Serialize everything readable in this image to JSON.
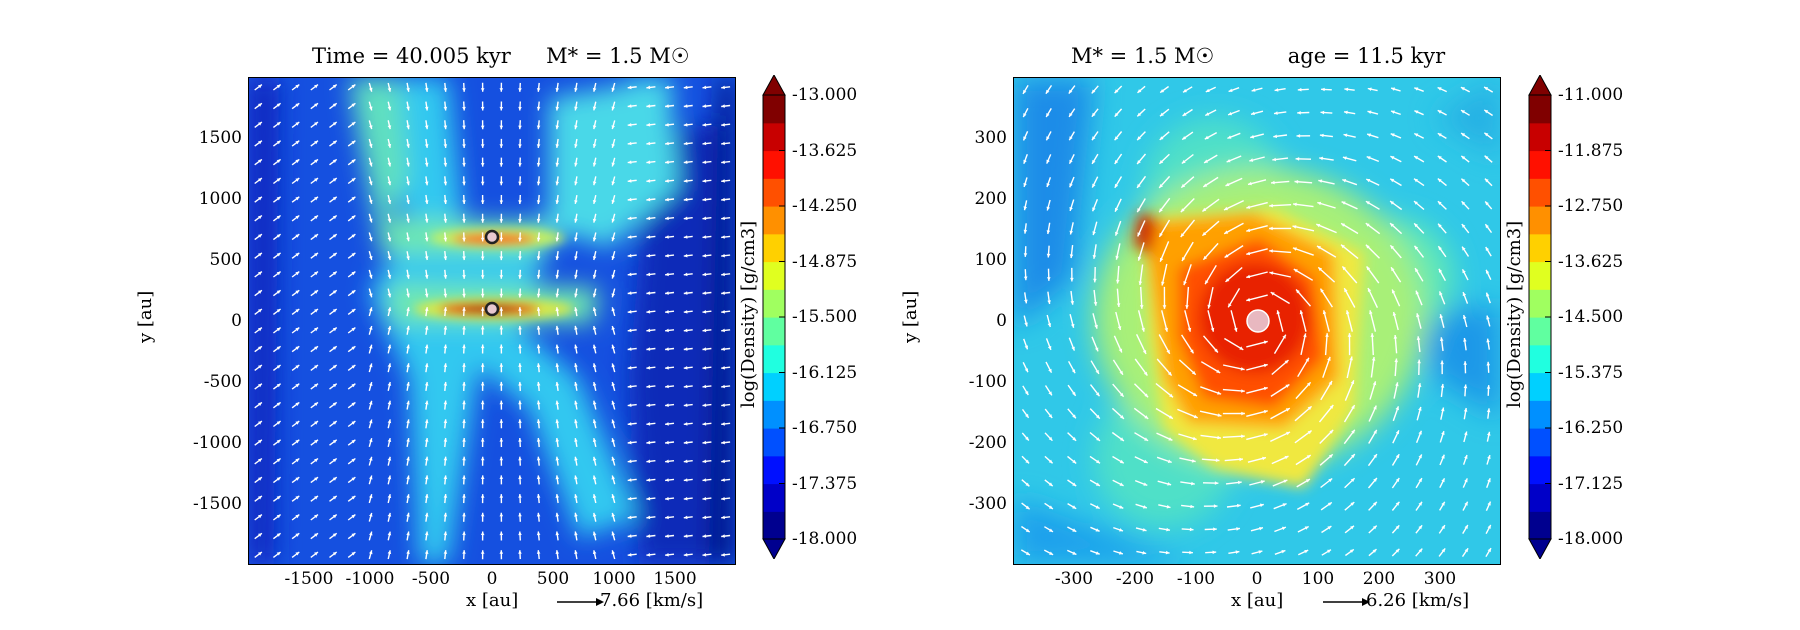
{
  "chart_data": [
    {
      "type": "heatmap",
      "title_left": "Time = 40.005 kyr",
      "title_right": "M* = 1.5 M☉",
      "xlabel": "x [au]",
      "ylabel": "y [au]",
      "xlim": [
        -2000,
        2000
      ],
      "ylim": [
        -2000,
        2000
      ],
      "xticks": [
        "-1500",
        "-1000",
        "-500",
        "0",
        "500",
        "1000",
        "1500"
      ],
      "yticks": [
        "1500",
        "1000",
        "500",
        "0",
        "-500",
        "-1000",
        "-1500"
      ],
      "vector_label": "7.66 [km/s]",
      "colorbar": {
        "label": "log(Density) [g/cm3]",
        "range": [
          -18.0,
          -13.0
        ],
        "ticks": [
          "-13.000",
          "-13.625",
          "-14.250",
          "-14.875",
          "-15.500",
          "-16.125",
          "-16.750",
          "-17.375",
          "-18.000"
        ]
      },
      "sinks": [
        [
          0,
          670
        ],
        [
          0,
          0
        ]
      ]
    },
    {
      "type": "heatmap",
      "title_left": "M* = 1.5 M☉",
      "title_right": "age = 11.5 kyr",
      "xlabel": "x [au]",
      "ylabel": "y [au]",
      "xlim": [
        -400,
        400
      ],
      "ylim": [
        -400,
        400
      ],
      "xticks": [
        "-300",
        "-200",
        "-100",
        "0",
        "100",
        "200",
        "300"
      ],
      "yticks": [
        "300",
        "200",
        "100",
        "0",
        "-100",
        "-200",
        "-300"
      ],
      "vector_label": "6.26 [km/s]",
      "colorbar": {
        "label": "log(Density) [g/cm3]",
        "range": [
          -18.0,
          -11.0
        ],
        "ticks": [
          "-11.000",
          "-11.875",
          "-12.750",
          "-13.625",
          "-14.500",
          "-15.375",
          "-16.250",
          "-17.125",
          "-18.000"
        ]
      },
      "sinks": [
        [
          0,
          0
        ]
      ]
    }
  ]
}
